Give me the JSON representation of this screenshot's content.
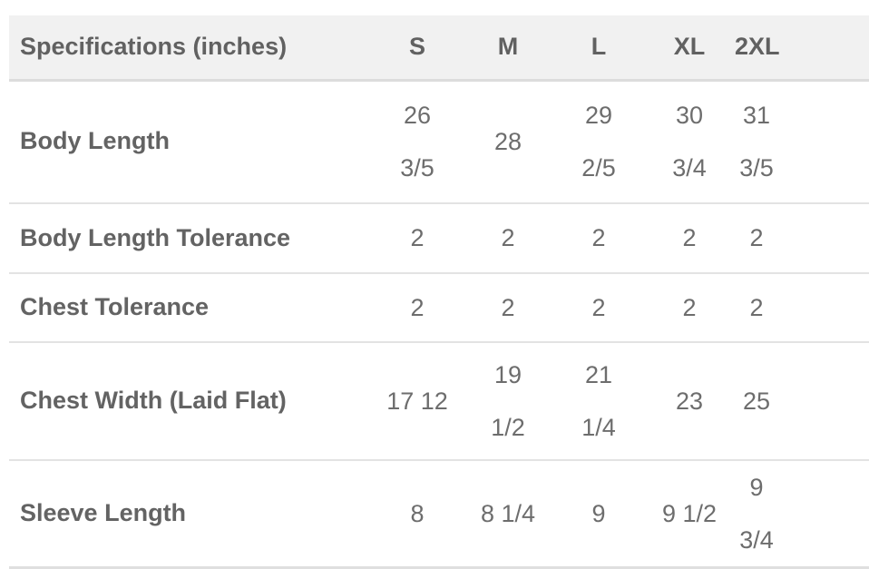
{
  "chart_data": {
    "type": "table",
    "title": "Specifications (inches)",
    "header": {
      "spec_label": "Specifications (inches)",
      "sizes": [
        "S",
        "M",
        "L",
        "XL",
        "2XL"
      ]
    },
    "rows": [
      {
        "label": "Body Length",
        "values": [
          "26\n3/5",
          "28",
          "29\n2/5",
          "30\n3/4",
          "31\n3/5"
        ]
      },
      {
        "label": "Body Length Tolerance",
        "values": [
          "2",
          "2",
          "2",
          "2",
          "2"
        ]
      },
      {
        "label": "Chest Tolerance",
        "values": [
          "2",
          "2",
          "2",
          "2",
          "2"
        ]
      },
      {
        "label": "Chest Width (Laid Flat)",
        "values": [
          "17 12",
          "19\n1/2",
          "21\n1/4",
          "23",
          "25"
        ]
      },
      {
        "label": "Sleeve Length",
        "values": [
          "8",
          "8 1/4",
          "9",
          "9 1/2",
          "9 3/4"
        ]
      }
    ],
    "layout": {
      "grid": "horizontal-dividers-only",
      "header_background": true
    }
  },
  "colors": {
    "header_bg": "#f1f1f1",
    "header_border": "#dcdcdc",
    "row_divider": "#e3e3e3",
    "label_text": "#636363",
    "value_text": "#6d6d6d",
    "page_bg": "#ffffff"
  }
}
